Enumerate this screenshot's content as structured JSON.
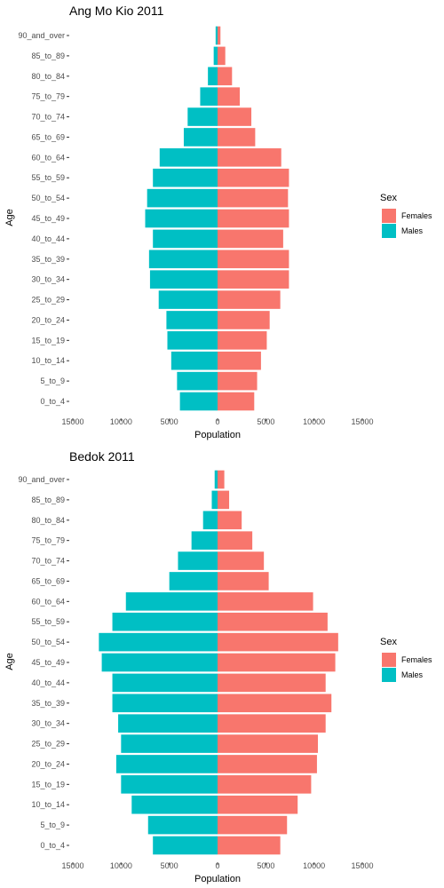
{
  "colors": {
    "females": "#f8766d",
    "males": "#00bfc4"
  },
  "chart_data": [
    {
      "type": "bar",
      "orientation": "horizontal",
      "title": "Ang Mo Kio  2011",
      "xlabel": "Population",
      "ylabel": "Age",
      "xlim": [
        -15000,
        15000
      ],
      "xticks": [
        -15000,
        -10000,
        -5000,
        0,
        5000,
        10000,
        15000
      ],
      "xtick_labels": [
        "15000",
        "10000",
        "5000",
        "0",
        "5000",
        "10000",
        "15000"
      ],
      "grid": false,
      "legend": {
        "title": "Sex",
        "position": "right",
        "entries": [
          "Females",
          "Males"
        ]
      },
      "categories": [
        "0_to_4",
        "5_to_9",
        "10_to_14",
        "15_to_19",
        "20_to_24",
        "25_to_29",
        "30_to_34",
        "35_to_39",
        "40_to_44",
        "45_to_49",
        "50_to_54",
        "55_to_59",
        "60_to_64",
        "65_to_69",
        "70_to_74",
        "75_to_79",
        "80_to_84",
        "85_to_89",
        "90_and_over"
      ],
      "series": [
        {
          "name": "Females",
          "values": [
            3800,
            4100,
            4500,
            5100,
            5400,
            6500,
            7400,
            7400,
            6800,
            7400,
            7300,
            7400,
            6600,
            3900,
            3500,
            2300,
            1500,
            800,
            300
          ]
        },
        {
          "name": "Males",
          "values": [
            3900,
            4200,
            4800,
            5200,
            5300,
            6100,
            7000,
            7100,
            6700,
            7500,
            7300,
            6700,
            6000,
            3500,
            3100,
            1800,
            1000,
            400,
            200
          ]
        }
      ]
    },
    {
      "type": "bar",
      "orientation": "horizontal",
      "title": "Bedok  2011",
      "xlabel": "Population",
      "ylabel": "Age",
      "xlim": [
        -15000,
        15000
      ],
      "xticks": [
        -15000,
        -10000,
        -5000,
        0,
        5000,
        10000,
        15000
      ],
      "xtick_labels": [
        "15000",
        "10000",
        "5000",
        "0",
        "5000",
        "10000",
        "15000"
      ],
      "grid": false,
      "legend": {
        "title": "Sex",
        "position": "right",
        "entries": [
          "Females",
          "Males"
        ]
      },
      "categories": [
        "0_to_4",
        "5_to_9",
        "10_to_14",
        "15_to_19",
        "20_to_24",
        "25_to_29",
        "30_to_34",
        "35_to_39",
        "40_to_44",
        "45_to_49",
        "50_to_54",
        "55_to_59",
        "60_to_64",
        "65_to_69",
        "70_to_74",
        "75_to_79",
        "80_to_84",
        "85_to_89",
        "90_and_over"
      ],
      "series": [
        {
          "name": "Females",
          "values": [
            6500,
            7200,
            8300,
            9700,
            10300,
            10400,
            11200,
            11800,
            11200,
            12200,
            12500,
            11400,
            9900,
            5300,
            4800,
            3600,
            2500,
            1200,
            700
          ]
        },
        {
          "name": "Males",
          "values": [
            6700,
            7200,
            8900,
            10000,
            10500,
            10000,
            10300,
            10900,
            10900,
            12000,
            12300,
            10900,
            9500,
            5000,
            4100,
            2700,
            1500,
            600,
            300
          ]
        }
      ]
    }
  ]
}
